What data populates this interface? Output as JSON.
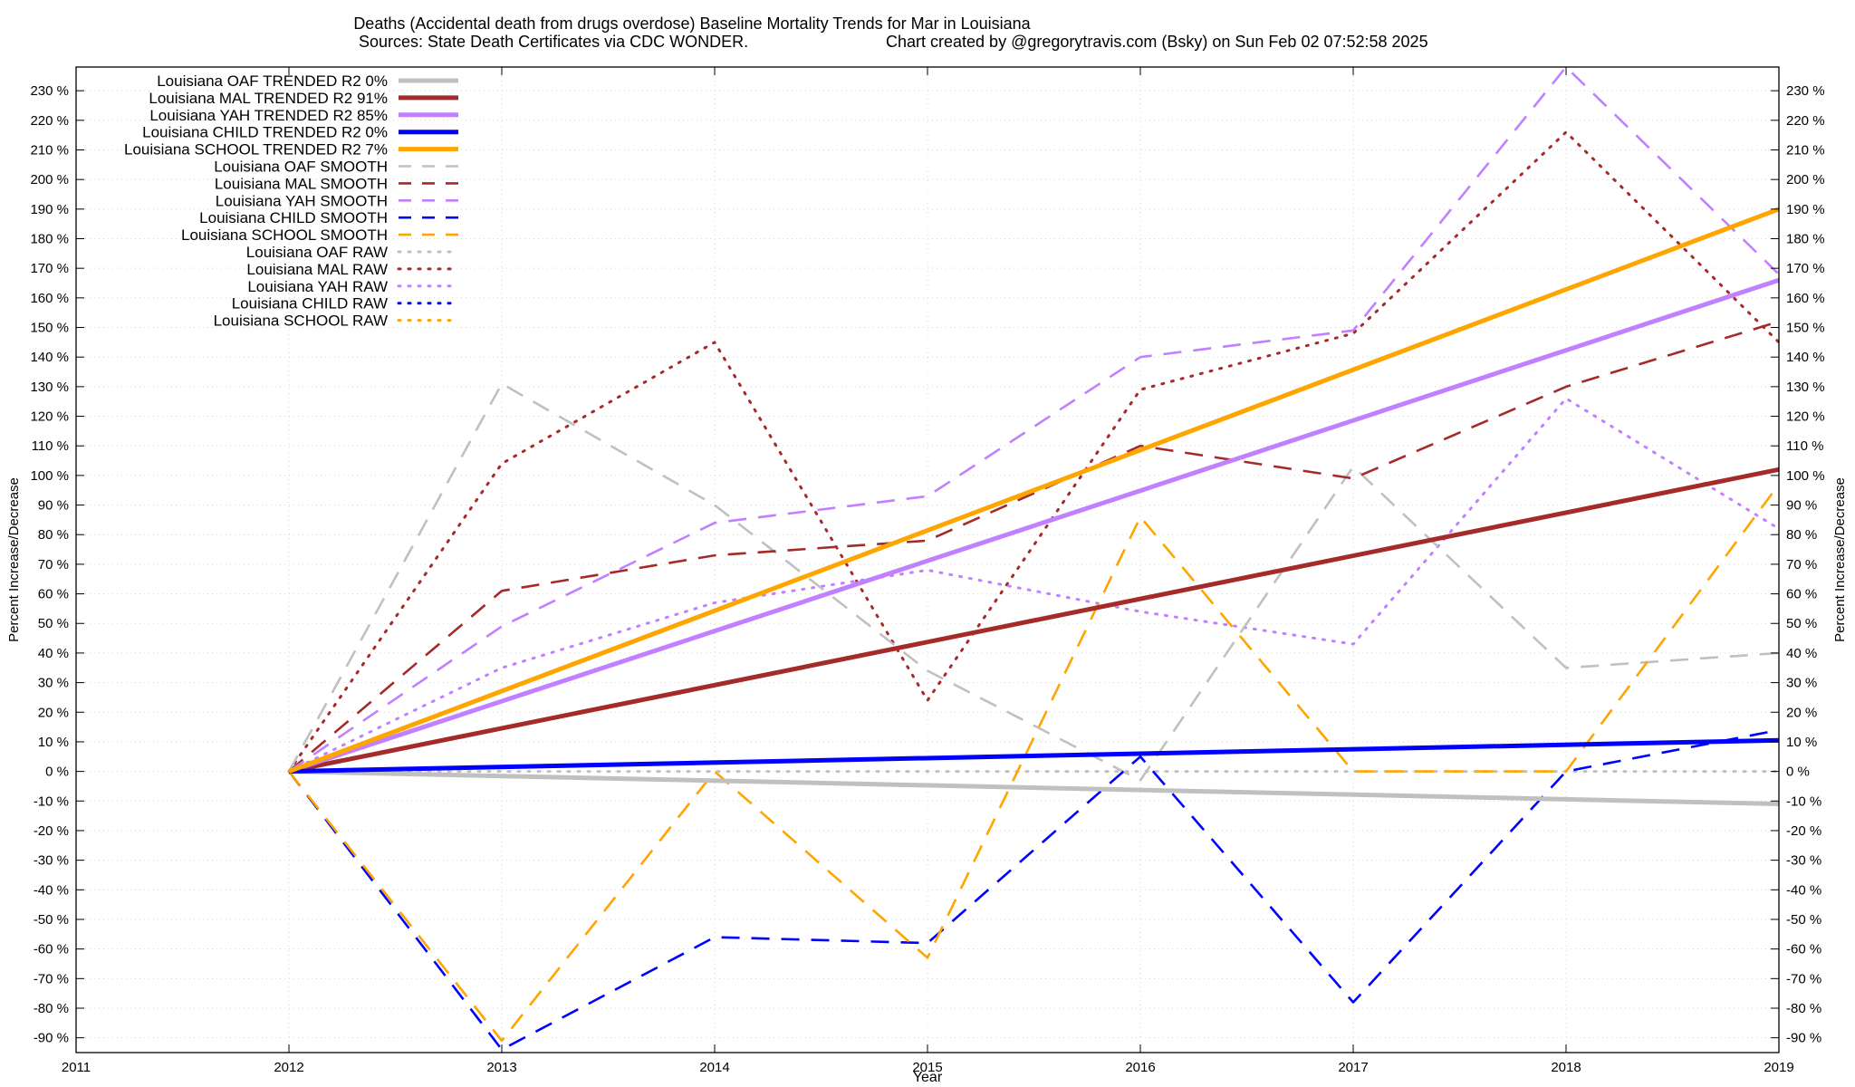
{
  "chart_data": {
    "type": "line",
    "title": "Deaths (Accidental death from drugs overdose)  Baseline Mortality Trends for Mar in Louisiana",
    "subtitle_left": "Sources: State Death Certificates via CDC WONDER.",
    "subtitle_right": "Chart created by @gregorytravis.com (Bsky) on Sun Feb 02 07:52:58 2025",
    "xlabel": "Year",
    "ylabel_left": "Percent Increase/Decrease",
    "ylabel_right": "Percent Increase/Decrease",
    "xlim": [
      2011,
      2019
    ],
    "ylim": [
      -95,
      238
    ],
    "x_ticks": [
      2011,
      2012,
      2013,
      2014,
      2015,
      2016,
      2017,
      2018,
      2019
    ],
    "y_ticks": [
      -90,
      -80,
      -70,
      -60,
      -50,
      -40,
      -30,
      -20,
      -10,
      0,
      10,
      20,
      30,
      40,
      50,
      60,
      70,
      80,
      90,
      100,
      110,
      120,
      130,
      140,
      150,
      160,
      170,
      180,
      190,
      200,
      210,
      220,
      230
    ],
    "y_tick_suffix": " %",
    "grid": true,
    "legend_position": "top-left",
    "series": [
      {
        "name": "Louisiana OAF TRENDED R2  0%",
        "style": "trend",
        "color": "#c0c0c0",
        "x": [
          2012,
          2019
        ],
        "y": [
          0,
          -11
        ]
      },
      {
        "name": "Louisiana MAL TRENDED R2  91%",
        "style": "trend",
        "color": "#a52a2a",
        "x": [
          2012,
          2019
        ],
        "y": [
          0,
          102
        ]
      },
      {
        "name": "Louisiana YAH TRENDED R2  85%",
        "style": "trend",
        "color": "#c080ff",
        "x": [
          2012,
          2019
        ],
        "y": [
          0,
          166
        ]
      },
      {
        "name": "Louisiana CHILD TRENDED R2  0%",
        "style": "trend",
        "color": "#0000ff",
        "x": [
          2012,
          2019
        ],
        "y": [
          0,
          10.5
        ]
      },
      {
        "name": "Louisiana SCHOOL TRENDED R2  7%",
        "style": "trend",
        "color": "#ffa500",
        "x": [
          2012,
          2019
        ],
        "y": [
          0,
          190
        ]
      },
      {
        "name": "Louisiana OAF SMOOTH",
        "style": "smooth",
        "color": "#c0c0c0",
        "x": [
          2012,
          2013,
          2014,
          2015,
          2016,
          2017,
          2018,
          2019
        ],
        "y": [
          0,
          131,
          90,
          34,
          -3,
          103,
          35,
          40
        ]
      },
      {
        "name": "Louisiana MAL SMOOTH",
        "style": "smooth",
        "color": "#a52a2a",
        "x": [
          2012,
          2013,
          2014,
          2015,
          2016,
          2017,
          2018,
          2019
        ],
        "y": [
          0,
          61,
          73,
          78,
          110,
          99,
          130,
          152
        ]
      },
      {
        "name": "Louisiana YAH SMOOTH",
        "style": "smooth",
        "color": "#c080ff",
        "x": [
          2012,
          2013,
          2014,
          2015,
          2016,
          2017,
          2018,
          2019
        ],
        "y": [
          0,
          49,
          84,
          93,
          140,
          149,
          238,
          168
        ]
      },
      {
        "name": "Louisiana CHILD SMOOTH",
        "style": "smooth",
        "color": "#0000ff",
        "x": [
          2012,
          2013,
          2014,
          2015,
          2016,
          2017,
          2018,
          2019
        ],
        "y": [
          0,
          -94,
          -56,
          -58,
          5,
          -78,
          0,
          14
        ]
      },
      {
        "name": "Louisiana SCHOOL SMOOTH",
        "style": "smooth",
        "color": "#ffa500",
        "x": [
          2012,
          2013,
          2014,
          2015,
          2016,
          2017,
          2018,
          2019
        ],
        "y": [
          0,
          -91,
          0,
          -63,
          86,
          0,
          0,
          97
        ]
      },
      {
        "name": "Louisiana OAF RAW",
        "style": "raw",
        "color": "#c0c0c0",
        "x": [
          2012,
          2013,
          2014,
          2015,
          2016,
          2017,
          2018,
          2019
        ],
        "y": [
          0,
          0,
          0,
          0,
          0,
          0,
          0,
          0
        ]
      },
      {
        "name": "Louisiana MAL RAW",
        "style": "raw",
        "color": "#a52a2a",
        "x": [
          2012,
          2013,
          2014,
          2015,
          2016,
          2017,
          2018,
          2019
        ],
        "y": [
          0,
          104,
          145,
          24,
          129,
          148,
          216,
          145
        ]
      },
      {
        "name": "Louisiana YAH RAW",
        "style": "raw",
        "color": "#c080ff",
        "x": [
          2012,
          2013,
          2014,
          2015,
          2016,
          2017,
          2018,
          2019
        ],
        "y": [
          0,
          35,
          57,
          68,
          54,
          43,
          126,
          82
        ]
      },
      {
        "name": "Louisiana CHILD RAW",
        "style": "raw",
        "color": "#0000ff",
        "x": [],
        "y": []
      },
      {
        "name": "Louisiana SCHOOL RAW",
        "style": "raw",
        "color": "#ffa500",
        "x": [],
        "y": []
      }
    ]
  }
}
